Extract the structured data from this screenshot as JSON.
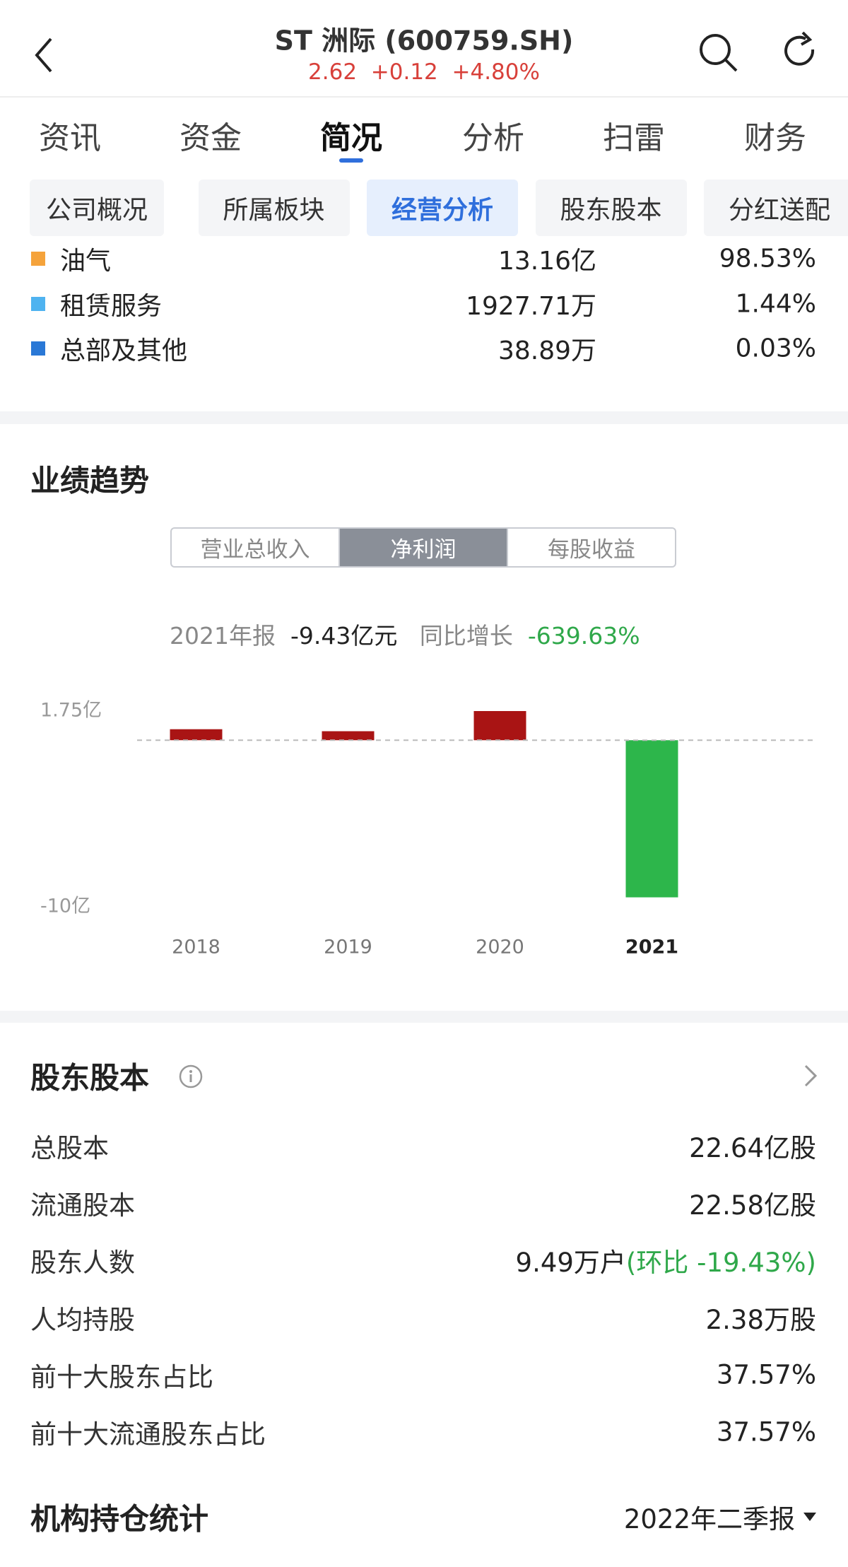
{
  "header": {
    "title": "ST 洲际 (600759.SH)",
    "price": "2.62",
    "change": "+0.12",
    "change_pct": "+4.80%"
  },
  "tabs": {
    "items": [
      "资讯",
      "资金",
      "简况",
      "分析",
      "扫雷",
      "财务"
    ],
    "active": 2
  },
  "sub_tabs": {
    "items": [
      "公司概况",
      "所属板块",
      "经营分析",
      "股东股本",
      "分红送配"
    ],
    "active": 2
  },
  "composition": [
    {
      "name": "油气",
      "color": "#f5a33b",
      "amount": "13.16亿",
      "share": "98.53%"
    },
    {
      "name": "租赁服务",
      "color": "#4fb3f0",
      "amount": "1927.71万",
      "share": "1.44%"
    },
    {
      "name": "总部及其他",
      "color": "#2a78d6",
      "amount": "38.89万",
      "share": "0.03%"
    }
  ],
  "performance": {
    "title": "业绩趋势",
    "segments": {
      "items": [
        "营业总收入",
        "净利润",
        "每股收益"
      ],
      "active": 1
    },
    "summary": {
      "period": "2021年报",
      "value": "-9.43亿元",
      "yoy_label": "同比增长",
      "yoy": "-639.63%"
    }
  },
  "chart_data": {
    "type": "bar",
    "categories": [
      "2018",
      "2019",
      "2020",
      "2021"
    ],
    "values": [
      0.66,
      0.54,
      1.75,
      -9.43
    ],
    "color": "#a91414",
    "negative_color": "#2db64b",
    "ylim": [
      -10,
      1.75
    ],
    "yticks": [
      {
        "value": -10,
        "label": "-10亿"
      },
      {
        "value": 1.75,
        "label": "1.75亿"
      }
    ]
  },
  "shareholders": {
    "title": "股东股本",
    "rows": [
      {
        "label": "总股本",
        "value": "22.64亿股"
      },
      {
        "label": "流通股本",
        "value": "22.58亿股"
      },
      {
        "label": "股东人数",
        "value": "9.49万户",
        "note": "(环比 -19.43%)"
      },
      {
        "label": "人均持股",
        "value": "2.38万股"
      },
      {
        "label": "前十大股东占比",
        "value": "37.57%"
      },
      {
        "label": "前十大流通股东占比",
        "value": "37.57%"
      }
    ]
  },
  "institutions": {
    "title": "机构持仓统计",
    "period": "2022年二季报"
  }
}
